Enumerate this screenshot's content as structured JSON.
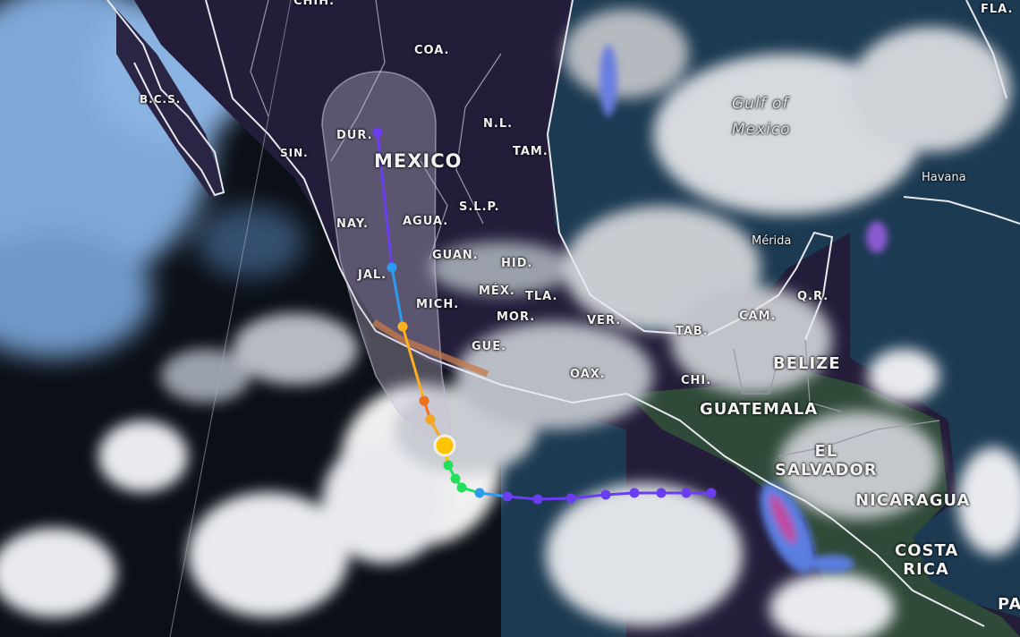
{
  "map": {
    "type": "satellite-imagery-with-storm-track",
    "labels": {
      "countries": [
        "MEXICO",
        "BELIZE",
        "GUATEMALA",
        "EL SALVADOR",
        "NICARAGUA",
        "COSTA RICA",
        "PA"
      ],
      "states": [
        "CHIH.",
        "COA.",
        "B.C.S.",
        "SIN.",
        "DUR.",
        "N.L.",
        "TAM.",
        "NAY.",
        "AGUA.",
        "S.L.P.",
        "JAL.",
        "GUAN.",
        "HID.",
        "MÉX.",
        "TLA.",
        "MICH.",
        "MOR.",
        "GUE.",
        "OAX.",
        "VER.",
        "TAB.",
        "CAM.",
        "Q.R.",
        "CHI.",
        "FLA."
      ],
      "water": [
        "Gulf of",
        "Mexico"
      ],
      "cities": [
        "Havana",
        "Mérida"
      ]
    },
    "storm_track": {
      "segment_colors": {
        "past_weak": "#6a3df0",
        "depression": "#2f9bf0",
        "storm": "#22e05a",
        "current": "#ffc400",
        "forecast_cat1": "#f5a623",
        "forecast_cat2": "#f07020",
        "forecast_ts": "#ffb020",
        "forecast_td": "#2f9bf0",
        "forecast_low": "#6a3df0"
      },
      "cone_color": "#c8c0d8",
      "warning_color": "#c87a4a"
    }
  }
}
